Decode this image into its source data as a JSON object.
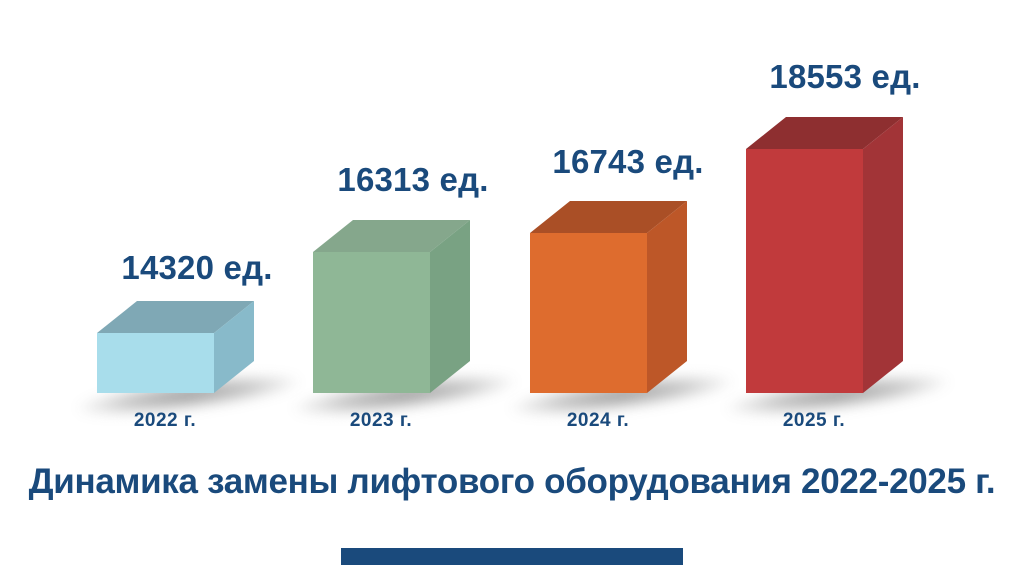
{
  "page": {
    "background_color": "#FFFFFF",
    "text_color": "#1A4A7C"
  },
  "title": {
    "text": "Динамика замены лифтового оборудования 2022-2025 г.",
    "color": "#1A4A7C"
  },
  "footer": {
    "accent_bar_color": "#1A4A7C"
  },
  "chart_data": {
    "type": "bar",
    "variant": "3d-pictorial-boxes",
    "title": "Динамика замены лифтового оборудования 2022-2025 г.",
    "unit": "ед.",
    "categories": [
      "2022 г.",
      "2023 г.",
      "2024 г.",
      "2025 г."
    ],
    "values": [
      14320,
      16313,
      16743,
      18553
    ],
    "value_labels": [
      "14320 ед.",
      "16313 ед.",
      "16743 ед.",
      "18553 ед."
    ],
    "label_color": "#1A4A7C",
    "axes": "none",
    "grid": false,
    "legend": "none",
    "series": [
      {
        "year": "2022 г.",
        "value": 14320,
        "value_label": "14320 ед.",
        "colors": {
          "front": "#A8DDEB",
          "top": "#7FA8B5",
          "side": "#88BACA"
        }
      },
      {
        "year": "2023 г.",
        "value": 16313,
        "value_label": "16313 ед.",
        "colors": {
          "front": "#8FB796",
          "top": "#85A78C",
          "side": "#79A283"
        }
      },
      {
        "year": "2024 г.",
        "value": 16743,
        "value_label": "16743 ед.",
        "colors": {
          "front": "#DE6C2E",
          "top": "#AA4F26",
          "side": "#BD5728"
        }
      },
      {
        "year": "2025 г.",
        "value": 18553,
        "value_label": "18553 ед.",
        "colors": {
          "front": "#C13A3C",
          "top": "#8E2F30",
          "side": "#A23437"
        }
      }
    ]
  }
}
